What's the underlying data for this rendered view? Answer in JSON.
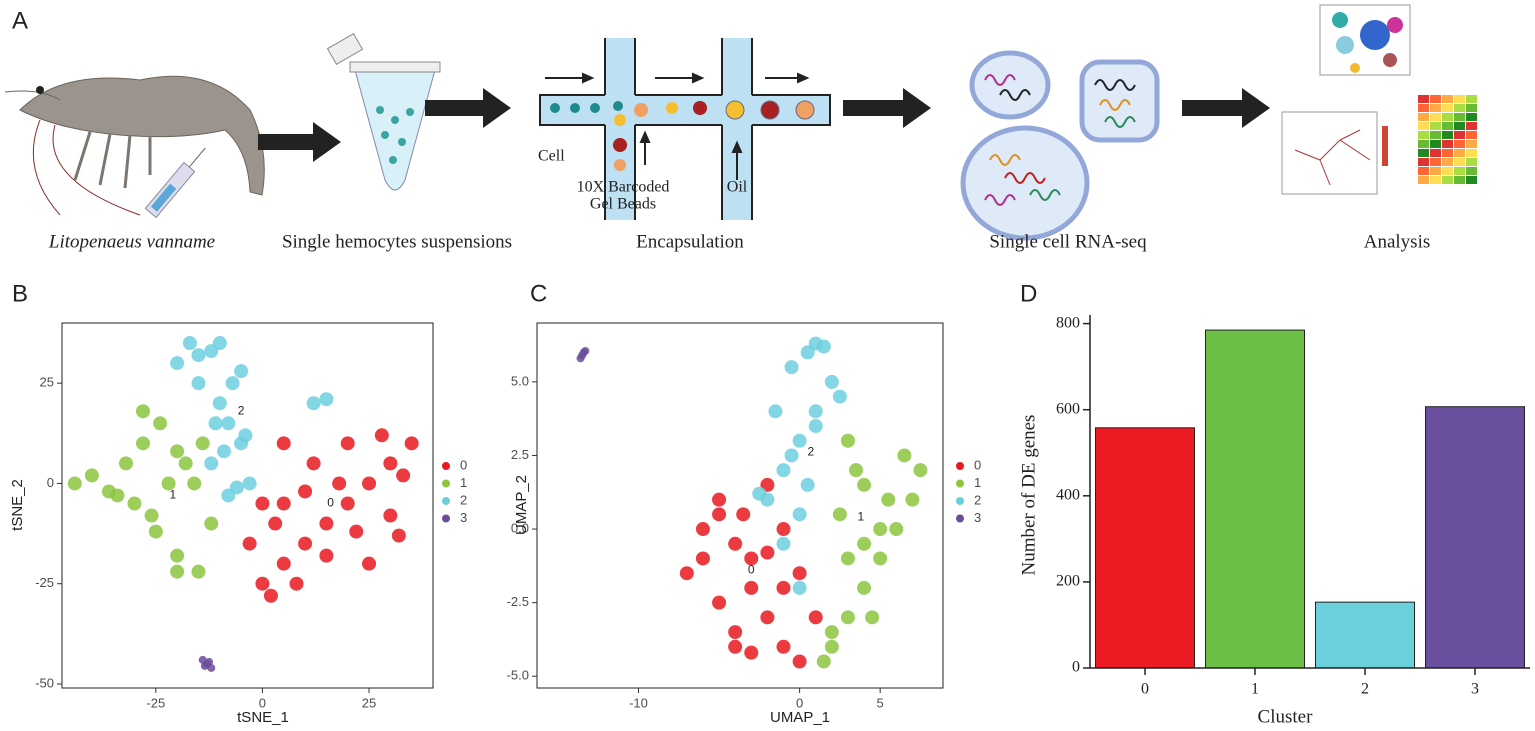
{
  "panel_labels": [
    "A",
    "B",
    "C",
    "D"
  ],
  "workflow": {
    "steps": [
      "Litopenaeus vanname",
      "Single hemocytes suspensions",
      "Encapsulation",
      "Single cell RNA-seq",
      "Analysis"
    ],
    "encapsulation_labels": [
      "Cell",
      "10X Barcoded",
      "Gel Beads",
      "Oil"
    ]
  },
  "chart_data": [
    {
      "type": "scatter",
      "xlabel": "tSNE_1",
      "ylabel": "tSNE_2",
      "xlim": [
        -47,
        40
      ],
      "ylim": [
        -51,
        40
      ],
      "xticks": [
        -25,
        0,
        25
      ],
      "yticks": [
        -50,
        -25,
        0,
        25
      ],
      "series": [
        {
          "name": "0",
          "color": "#e8191e",
          "x": [
            0,
            5,
            10,
            15,
            20,
            25,
            30,
            35,
            -3,
            5,
            12,
            20,
            28,
            33,
            2,
            8,
            15,
            22,
            30,
            5,
            10,
            18,
            25,
            3,
            0,
            32
          ],
          "y": [
            -25,
            -20,
            -15,
            -10,
            -5,
            0,
            5,
            10,
            -15,
            -5,
            5,
            10,
            12,
            2,
            -28,
            -25,
            -18,
            -12,
            -8,
            10,
            -2,
            0,
            -20,
            -10,
            -5,
            -13
          ]
        },
        {
          "name": "1",
          "color": "#8cc63f",
          "x": [
            -44,
            -40,
            -36,
            -32,
            -28,
            -24,
            -20,
            -16,
            -12,
            -30,
            -25,
            -20,
            -15,
            -22,
            -18,
            -26,
            -34,
            -14,
            -20,
            -28
          ],
          "y": [
            0,
            2,
            -2,
            5,
            10,
            15,
            8,
            0,
            -10,
            -5,
            -12,
            -18,
            -22,
            0,
            5,
            -8,
            -3,
            10,
            -22,
            18
          ]
        },
        {
          "name": "2",
          "color": "#6dcfde",
          "x": [
            -20,
            -17,
            -15,
            -12,
            -10,
            -8,
            -5,
            -3,
            -12,
            -8,
            -5,
            -10,
            -7,
            -4,
            12,
            15,
            -15,
            -9,
            -6,
            -11
          ],
          "y": [
            30,
            35,
            25,
            33,
            20,
            15,
            10,
            0,
            5,
            -3,
            28,
            35,
            25,
            12,
            20,
            21,
            32,
            8,
            -1,
            15
          ]
        },
        {
          "name": "3",
          "color": "#6b4c9a",
          "x": [
            -14,
            -13,
            -12,
            -13.5,
            -12.5
          ],
          "y": [
            -44,
            -45,
            -46,
            -45.5,
            -44.5
          ]
        }
      ],
      "annotations": [
        {
          "text": "0",
          "x": 16,
          "y": -5
        },
        {
          "text": "1",
          "x": -21,
          "y": -3
        },
        {
          "text": "2",
          "x": -5,
          "y": 18
        }
      ]
    },
    {
      "type": "scatter",
      "xlabel": "UMAP_1",
      "ylabel": "UMAP_2",
      "xlim": [
        -16.3,
        8.9
      ],
      "ylim": [
        -5.4,
        7.0
      ],
      "xticks": [
        -10,
        0,
        5
      ],
      "yticks": [
        {
          "value": -5,
          "label": "-5.0"
        },
        {
          "value": -2.5,
          "label": "-2.5"
        },
        {
          "value": 0,
          "label": "0.0"
        },
        {
          "value": 2.5,
          "label": "2.5"
        },
        {
          "value": 5,
          "label": "5.0"
        }
      ],
      "series": [
        {
          "name": "0",
          "color": "#e8191e",
          "x": [
            -7,
            -6,
            -5,
            -4,
            -3,
            -2,
            -1,
            0,
            1,
            -5,
            -4,
            -3,
            -2,
            -1,
            0,
            -6,
            -5,
            -3,
            -1,
            -4,
            -2,
            -3.5
          ],
          "y": [
            -1.5,
            0,
            1,
            -0.5,
            -2,
            -3,
            -4,
            -4.5,
            -3,
            -2.5,
            -4,
            -4.2,
            1.5,
            0,
            -1.5,
            -1,
            0.5,
            -1,
            -2,
            -3.5,
            -0.8,
            0.5
          ]
        },
        {
          "name": "1",
          "color": "#8cc63f",
          "x": [
            2,
            3,
            4,
            5,
            6,
            7,
            7.5,
            3,
            4,
            5,
            2,
            3,
            4,
            2.5,
            3.5,
            6.5,
            5.5,
            4.5,
            1.5
          ],
          "y": [
            -4,
            -3,
            -2,
            -1,
            0,
            1,
            2,
            3,
            1.5,
            0,
            -3.5,
            -1,
            -0.5,
            0.5,
            2,
            2.5,
            1,
            -3,
            -4.5
          ]
        },
        {
          "name": "2",
          "color": "#6dcfde",
          "x": [
            -2,
            -1,
            0,
            1,
            2,
            0.5,
            -0.5,
            1.5,
            0,
            -1,
            0,
            0.5,
            1,
            -1.5,
            -0.5,
            -2.5,
            2.5,
            1
          ],
          "y": [
            1,
            2,
            3,
            4,
            5,
            6,
            5.5,
            6.2,
            -2,
            -0.5,
            0.5,
            1.5,
            3.5,
            4,
            2.5,
            1.2,
            4.5,
            6.3
          ]
        },
        {
          "name": "3",
          "color": "#6b4c9a",
          "x": [
            -13.6,
            -13.4,
            -13.5,
            -13.3
          ],
          "y": [
            5.8,
            6.0,
            5.9,
            6.05
          ]
        }
      ],
      "annotations": [
        {
          "text": "0",
          "x": -3,
          "y": -1.4
        },
        {
          "text": "1",
          "x": 3.8,
          "y": 0.4
        },
        {
          "text": "2",
          "x": 0.7,
          "y": 2.6
        }
      ]
    },
    {
      "type": "bar",
      "xlabel": "Cluster",
      "ylabel": "Number of DE genes",
      "categories": [
        "0",
        "1",
        "2",
        "3"
      ],
      "values": [
        558,
        785,
        153,
        607
      ],
      "colors": [
        "#ed1c24",
        "#6cbf46",
        "#6ccfdc",
        "#6a4f9e"
      ],
      "ylim": [
        0,
        820
      ],
      "yticks": [
        0,
        200,
        400,
        600,
        800
      ]
    }
  ]
}
